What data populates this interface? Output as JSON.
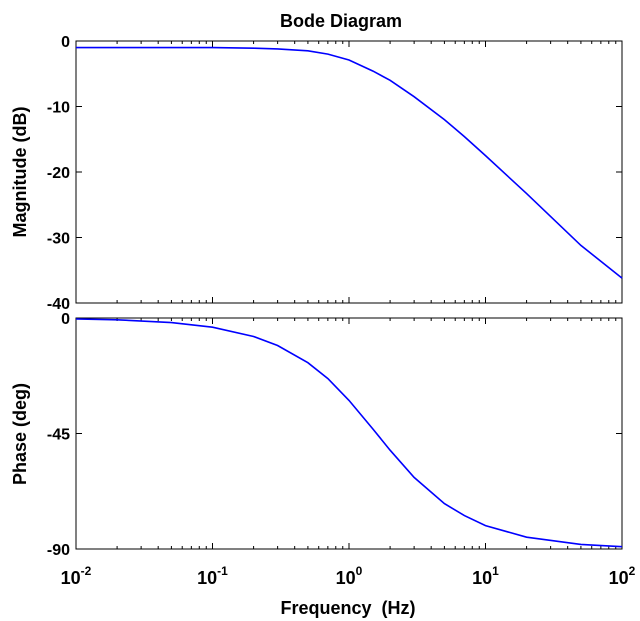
{
  "chart_data": [
    {
      "type": "line",
      "title": "Bode Diagram",
      "ylabel": "Magnitude (dB)",
      "xlabel": "",
      "x_scale": "log",
      "xlim": [
        0.01,
        100
      ],
      "ylim": [
        -40,
        0
      ],
      "yticks": [
        "0",
        "-10",
        "-20",
        "-30",
        "-40"
      ],
      "line_color": "#0000ff",
      "series": [
        {
          "x": [
            0.01,
            0.02,
            0.05,
            0.1,
            0.2,
            0.3,
            0.5,
            0.7,
            1,
            1.5,
            2,
            3,
            5,
            7,
            10,
            20,
            50,
            100
          ],
          "values": [
            -1.0,
            -1.0,
            -1.0,
            -1.0,
            -1.1,
            -1.2,
            -1.5,
            -2.0,
            -2.9,
            -4.6,
            -6.0,
            -8.5,
            -12.0,
            -14.6,
            -17.5,
            -23.3,
            -31.2,
            -36.2
          ]
        }
      ]
    },
    {
      "type": "line",
      "title": "",
      "ylabel": "Phase (deg)",
      "xlabel": "Frequency  (Hz)",
      "x_scale": "log",
      "xlim": [
        0.01,
        100
      ],
      "ylim": [
        -90,
        0
      ],
      "yticks": [
        "0",
        "-45",
        "-90"
      ],
      "xticks": [
        {
          "base": "10",
          "exp": "-2"
        },
        {
          "base": "10",
          "exp": "-1"
        },
        {
          "base": "10",
          "exp": "0"
        },
        {
          "base": "10",
          "exp": "1"
        },
        {
          "base": "10",
          "exp": "2"
        }
      ],
      "line_color": "#0000ff",
      "series": [
        {
          "x": [
            0.01,
            0.02,
            0.05,
            0.1,
            0.2,
            0.3,
            0.5,
            0.7,
            1,
            1.5,
            2,
            3,
            5,
            7,
            10,
            20,
            50,
            100
          ],
          "values": [
            -0.4,
            -0.7,
            -1.8,
            -3.6,
            -7.2,
            -10.7,
            -17.4,
            -23.6,
            -32.1,
            -43.3,
            -51.5,
            -62.1,
            -72.3,
            -77.0,
            -80.9,
            -85.4,
            -88.2,
            -89.1
          ]
        }
      ]
    }
  ]
}
